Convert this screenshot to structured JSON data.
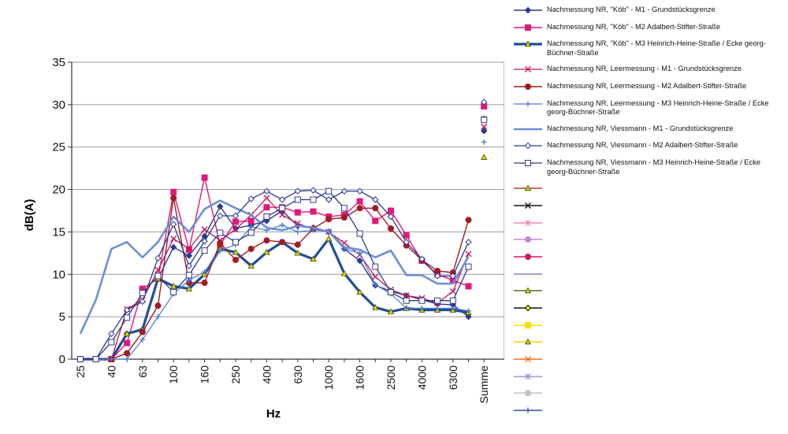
{
  "chart_data": {
    "type": "line",
    "title": "",
    "xlabel": "Hz",
    "ylabel": "dB(A)",
    "ylim": [
      0,
      35
    ],
    "yticks": [
      0,
      5,
      10,
      15,
      20,
      25,
      30,
      35
    ],
    "grid": "horizontal",
    "legend_position": "right",
    "categories": [
      "25",
      "31.5",
      "40",
      "50",
      "63",
      "80",
      "100",
      "125",
      "160",
      "200",
      "250",
      "315",
      "400",
      "500",
      "630",
      "800",
      "1000",
      "1250",
      "1600",
      "2000",
      "2500",
      "3150",
      "4000",
      "5000",
      "6300",
      "8000",
      "Summe"
    ],
    "x_tick_labels": [
      "25",
      "",
      "40",
      "",
      "63",
      "",
      "100",
      "",
      "160",
      "",
      "250",
      "",
      "400",
      "",
      "630",
      "",
      "1000",
      "",
      "1600",
      "",
      "2500",
      "",
      "4000",
      "",
      "6300",
      "",
      "Summe"
    ],
    "series": [
      {
        "name": "Nachmessung NR, \"Köb\" - M1 - Grundstücksgrenze",
        "color": "#2b3990",
        "marker": "diamond",
        "values": [
          0,
          0,
          0,
          3.0,
          3.5,
          9.5,
          13.2,
          12.2,
          14.5,
          18.0,
          15.4,
          15.8,
          16.3,
          17.5,
          15.7,
          15.5,
          15.0,
          13.0,
          11.6,
          8.7,
          8.0,
          7.5,
          7.0,
          6.5,
          6.4,
          5.0,
          26.9
        ]
      },
      {
        "name": "Nachmessung NR, \"Köb\" - M2 Adalbert-Stifter-Straße",
        "color": "#e2187a",
        "marker": "square",
        "values": [
          0,
          0,
          0,
          1.9,
          8.3,
          9.5,
          19.7,
          12.9,
          21.4,
          13.5,
          16.2,
          16.3,
          17.9,
          17.9,
          17.3,
          17.4,
          16.8,
          17.0,
          18.6,
          16.3,
          17.5,
          14.6,
          11.6,
          10.0,
          9.3,
          8.6,
          29.8
        ]
      },
      {
        "name": "Nachmessung NR, \"Köb\" - M3 Heinrich-Heine-Straße / Ecke georg-Büchner-Straße",
        "color": "#1f4e9c",
        "marker": "triangle",
        "values": [
          0,
          0,
          0,
          3.0,
          3.5,
          9.5,
          8.6,
          8.3,
          10.0,
          13.0,
          12.6,
          11.0,
          12.6,
          13.8,
          12.5,
          11.8,
          14.2,
          10.1,
          7.9,
          6.1,
          5.6,
          6.0,
          5.8,
          5.8,
          5.8,
          5.5,
          23.8
        ]
      },
      {
        "name": "Nachmessung NR, Leermessung - M1 - Grundstücksgrenze",
        "color": "#c2185b",
        "marker": "x",
        "values": [
          0,
          0,
          0,
          5.9,
          7.0,
          10.5,
          14.2,
          13.0,
          15.3,
          14.0,
          15.3,
          17.0,
          19.0,
          17.0,
          16.0,
          15.3,
          15.0,
          13.7,
          12.3,
          9.7,
          8.2,
          7.5,
          7.2,
          6.6,
          8.0,
          12.4,
          27.4
        ]
      },
      {
        "name": "Nachmessung NR, Leermessung - M2 Adalbert-Stifter-Straße",
        "color": "#a01c24",
        "marker": "circle",
        "values": [
          0,
          0,
          0,
          0.7,
          3.2,
          6.3,
          19.0,
          9.0,
          9.0,
          13.7,
          11.7,
          13.0,
          14.0,
          13.8,
          13.5,
          15.4,
          16.5,
          16.7,
          17.8,
          17.8,
          15.4,
          13.4,
          11.7,
          10.4,
          10.2,
          16.4,
          28.3
        ]
      },
      {
        "name": "Nachmessung NR, Leermessung - M3 Heinrich-Heine-Straße / Ecke georg-Büchner-Straße",
        "color": "#4a7cd0",
        "marker": "plus",
        "values": [
          0,
          0,
          0,
          0,
          2.3,
          5.0,
          7.7,
          9.3,
          10.3,
          12.8,
          13.5,
          15.6,
          15.2,
          15.8,
          15.0,
          15.2,
          15.1,
          13.0,
          12.5,
          8.8,
          7.7,
          6.0,
          6.0,
          6.0,
          6.0,
          5.7,
          25.6
        ]
      },
      {
        "name": "Nachmessung NR, Viessmann - M1 - Grundstücksgrenze",
        "color": "#6b8fd6",
        "marker": "none",
        "values": [
          3.0,
          7.0,
          13.0,
          13.8,
          12.0,
          13.8,
          16.8,
          15.0,
          17.7,
          18.7,
          17.8,
          17.0,
          15.5,
          15.2,
          15.7,
          15.5,
          15.0,
          13.2,
          12.9,
          12.0,
          12.8,
          9.9,
          9.9,
          8.9,
          8.9,
          12.1,
          28.5
        ]
      },
      {
        "name": "Nachmessung NR, Viessmann - M2 Adalbert-Stifter-Straße",
        "color": "#2b3990",
        "marker": "diamond_open",
        "values": [
          0,
          0,
          3.0,
          5.8,
          6.8,
          11.9,
          15.9,
          11.0,
          13.9,
          16.9,
          16.9,
          18.9,
          19.8,
          18.8,
          19.8,
          19.9,
          18.8,
          19.8,
          19.8,
          18.8,
          16.8,
          13.8,
          11.8,
          9.8,
          9.8,
          13.8,
          30.3
        ]
      },
      {
        "name": "Nachmessung NR, Viessmann - M3 Heinrich-Heine-Straße / Ecke georg-Büchner-Straße",
        "color": "#2b3990",
        "marker": "square_open",
        "values": [
          0,
          0,
          2.0,
          4.9,
          7.8,
          9.8,
          7.9,
          9.9,
          12.8,
          14.9,
          13.8,
          14.9,
          16.8,
          17.8,
          18.8,
          18.8,
          19.8,
          17.8,
          14.8,
          10.9,
          7.9,
          6.9,
          6.9,
          6.9,
          6.9,
          10.9,
          28.2
        ]
      }
    ],
    "legend_extra_entries": [
      {
        "color": "#b5442e",
        "marker": "triangle"
      },
      {
        "color": "#111111",
        "marker": "x"
      },
      {
        "color": "#f08aa8",
        "marker": "asterisk"
      },
      {
        "color": "#c08ad0",
        "marker": "circle"
      },
      {
        "color": "#d21a55",
        "marker": "circle"
      },
      {
        "color": "#8080d0",
        "marker": "none"
      },
      {
        "color": "#5a6a2a",
        "marker": "triangle"
      },
      {
        "color": "#111111",
        "marker": "diamond_yellow"
      },
      {
        "color": "#f2e600",
        "marker": "square"
      },
      {
        "color": "#f2d000",
        "marker": "triangle"
      },
      {
        "color": "#f07020",
        "marker": "x"
      },
      {
        "color": "#a090d8",
        "marker": "asterisk"
      },
      {
        "color": "#c0c0c0",
        "marker": "circle"
      },
      {
        "color": "#3050b0",
        "marker": "plus"
      }
    ]
  }
}
